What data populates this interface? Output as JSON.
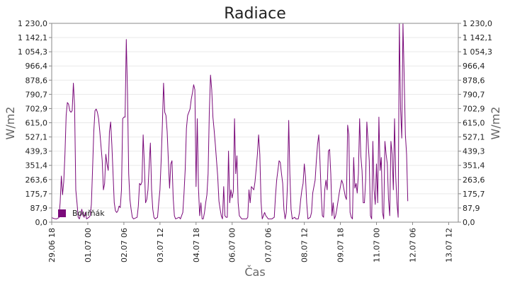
{
  "chart_data": {
    "type": "line",
    "title": "Radiace",
    "xlabel": "Čas",
    "ylabel": "W/m2",
    "y2label": "W/m2",
    "ylim": [
      0,
      1230.0
    ],
    "y_ticks": [
      "0,0",
      "87,9",
      "175,7",
      "263,6",
      "351,4",
      "439,3",
      "527,1",
      "615,0",
      "702,9",
      "790,7",
      "878,6",
      "966,4",
      "1 054,3",
      "1 142,1",
      "1 230,0"
    ],
    "x_ticks": [
      {
        "label": "29.06 18",
        "t": 0
      },
      {
        "label": "01.07 00",
        "t": 30
      },
      {
        "label": "02.07 06",
        "t": 60
      },
      {
        "label": "03.07 12",
        "t": 90
      },
      {
        "label": "04.07 18",
        "t": 120
      },
      {
        "label": "06.07 00",
        "t": 150
      },
      {
        "label": "07.07 06",
        "t": 180
      },
      {
        "label": "08.07 12",
        "t": 210
      },
      {
        "label": "09.07 18",
        "t": 240
      },
      {
        "label": "11.07 00",
        "t": 270
      },
      {
        "label": "12.07 06",
        "t": 300
      },
      {
        "label": "13.07 12",
        "t": 330
      }
    ],
    "xlim": [
      0,
      338
    ],
    "legend": "inside-bottom-left",
    "grid": true,
    "series": [
      {
        "name": "Bouřňák",
        "color": "#7a0a7a",
        "points": [
          [
            0,
            28
          ],
          [
            2,
            22
          ],
          [
            4,
            20
          ],
          [
            6,
            28
          ],
          [
            7,
            120
          ],
          [
            8,
            285
          ],
          [
            9,
            170
          ],
          [
            10,
            250
          ],
          [
            11,
            420
          ],
          [
            12,
            660
          ],
          [
            13,
            740
          ],
          [
            14,
            730
          ],
          [
            15,
            690
          ],
          [
            16,
            680
          ],
          [
            17,
            690
          ],
          [
            18,
            860
          ],
          [
            19,
            720
          ],
          [
            20,
            200
          ],
          [
            21,
            120
          ],
          [
            22,
            30
          ],
          [
            23,
            20
          ],
          [
            25,
            80
          ],
          [
            26,
            40
          ],
          [
            27,
            30
          ],
          [
            28,
            60
          ],
          [
            29,
            20
          ],
          [
            31,
            30
          ],
          [
            32,
            40
          ],
          [
            33,
            110
          ],
          [
            34,
            330
          ],
          [
            35,
            560
          ],
          [
            36,
            690
          ],
          [
            37,
            700
          ],
          [
            38,
            680
          ],
          [
            39,
            640
          ],
          [
            40,
            560
          ],
          [
            41,
            470
          ],
          [
            42,
            380
          ],
          [
            43,
            200
          ],
          [
            44,
            240
          ],
          [
            45,
            420
          ],
          [
            46,
            360
          ],
          [
            47,
            320
          ],
          [
            48,
            560
          ],
          [
            49,
            620
          ],
          [
            50,
            480
          ],
          [
            51,
            300
          ],
          [
            52,
            120
          ],
          [
            53,
            70
          ],
          [
            54,
            60
          ],
          [
            55,
            70
          ],
          [
            56,
            100
          ],
          [
            57,
            90
          ],
          [
            58,
            200
          ],
          [
            59,
            640
          ],
          [
            60,
            650
          ],
          [
            61,
            650
          ],
          [
            62,
            1130
          ],
          [
            63,
            800
          ],
          [
            64,
            300
          ],
          [
            65,
            140
          ],
          [
            66,
            80
          ],
          [
            67,
            30
          ],
          [
            68,
            20
          ],
          [
            71,
            30
          ],
          [
            72,
            100
          ],
          [
            73,
            240
          ],
          [
            74,
            230
          ],
          [
            75,
            250
          ],
          [
            76,
            540
          ],
          [
            77,
            360
          ],
          [
            78,
            120
          ],
          [
            79,
            140
          ],
          [
            80,
            200
          ],
          [
            81,
            350
          ],
          [
            82,
            490
          ],
          [
            83,
            200
          ],
          [
            84,
            80
          ],
          [
            85,
            30
          ],
          [
            86,
            20
          ],
          [
            88,
            30
          ],
          [
            89,
            120
          ],
          [
            90,
            200
          ],
          [
            91,
            380
          ],
          [
            92,
            600
          ],
          [
            93,
            860
          ],
          [
            94,
            680
          ],
          [
            95,
            660
          ],
          [
            96,
            560
          ],
          [
            97,
            380
          ],
          [
            98,
            210
          ],
          [
            99,
            360
          ],
          [
            100,
            380
          ],
          [
            101,
            150
          ],
          [
            102,
            40
          ],
          [
            103,
            20
          ],
          [
            106,
            30
          ],
          [
            107,
            20
          ],
          [
            109,
            60
          ],
          [
            110,
            180
          ],
          [
            111,
            330
          ],
          [
            112,
            580
          ],
          [
            113,
            660
          ],
          [
            114,
            680
          ],
          [
            115,
            700
          ],
          [
            116,
            760
          ],
          [
            117,
            800
          ],
          [
            118,
            850
          ],
          [
            119,
            820
          ],
          [
            120,
            220
          ],
          [
            121,
            640
          ],
          [
            122,
            210
          ],
          [
            123,
            40
          ],
          [
            124,
            120
          ],
          [
            125,
            20
          ],
          [
            126,
            20
          ],
          [
            127,
            60
          ],
          [
            128,
            120
          ],
          [
            129,
            170
          ],
          [
            130,
            300
          ],
          [
            131,
            680
          ],
          [
            132,
            910
          ],
          [
            133,
            820
          ],
          [
            134,
            650
          ],
          [
            135,
            570
          ],
          [
            136,
            480
          ],
          [
            137,
            380
          ],
          [
            138,
            280
          ],
          [
            139,
            130
          ],
          [
            140,
            80
          ],
          [
            141,
            40
          ],
          [
            142,
            20
          ],
          [
            143,
            220
          ],
          [
            144,
            40
          ],
          [
            145,
            30
          ],
          [
            146,
            30
          ],
          [
            147,
            440
          ],
          [
            148,
            120
          ],
          [
            149,
            200
          ],
          [
            150,
            150
          ],
          [
            151,
            190
          ],
          [
            152,
            640
          ],
          [
            153,
            300
          ],
          [
            154,
            410
          ],
          [
            155,
            120
          ],
          [
            156,
            40
          ],
          [
            158,
            20
          ],
          [
            160,
            20
          ],
          [
            162,
            20
          ],
          [
            163,
            30
          ],
          [
            164,
            200
          ],
          [
            165,
            120
          ],
          [
            166,
            220
          ],
          [
            167,
            210
          ],
          [
            168,
            200
          ],
          [
            169,
            250
          ],
          [
            170,
            330
          ],
          [
            171,
            420
          ],
          [
            172,
            540
          ],
          [
            173,
            420
          ],
          [
            174,
            130
          ],
          [
            175,
            20
          ],
          [
            176,
            40
          ],
          [
            177,
            60
          ],
          [
            178,
            40
          ],
          [
            179,
            30
          ],
          [
            180,
            20
          ],
          [
            183,
            20
          ],
          [
            185,
            30
          ],
          [
            186,
            160
          ],
          [
            187,
            260
          ],
          [
            188,
            320
          ],
          [
            189,
            380
          ],
          [
            190,
            370
          ],
          [
            191,
            300
          ],
          [
            192,
            240
          ],
          [
            193,
            80
          ],
          [
            194,
            20
          ],
          [
            195,
            60
          ],
          [
            196,
            240
          ],
          [
            197,
            630
          ],
          [
            198,
            300
          ],
          [
            199,
            80
          ],
          [
            200,
            20
          ],
          [
            202,
            30
          ],
          [
            203,
            20
          ],
          [
            205,
            20
          ],
          [
            206,
            60
          ],
          [
            207,
            140
          ],
          [
            208,
            200
          ],
          [
            209,
            240
          ],
          [
            210,
            360
          ],
          [
            211,
            280
          ],
          [
            212,
            120
          ],
          [
            213,
            20
          ],
          [
            215,
            30
          ],
          [
            216,
            60
          ],
          [
            217,
            180
          ],
          [
            218,
            220
          ],
          [
            219,
            260
          ],
          [
            220,
            380
          ],
          [
            221,
            480
          ],
          [
            222,
            540
          ],
          [
            223,
            380
          ],
          [
            224,
            180
          ],
          [
            225,
            40
          ],
          [
            226,
            30
          ],
          [
            227,
            200
          ],
          [
            228,
            260
          ],
          [
            229,
            200
          ],
          [
            230,
            440
          ],
          [
            231,
            450
          ],
          [
            232,
            300
          ],
          [
            233,
            40
          ],
          [
            234,
            120
          ],
          [
            235,
            20
          ],
          [
            236,
            40
          ],
          [
            237,
            80
          ],
          [
            238,
            130
          ],
          [
            239,
            180
          ],
          [
            240,
            220
          ],
          [
            241,
            260
          ],
          [
            242,
            240
          ],
          [
            243,
            200
          ],
          [
            244,
            160
          ],
          [
            245,
            140
          ],
          [
            246,
            600
          ],
          [
            247,
            540
          ],
          [
            248,
            60
          ],
          [
            249,
            30
          ],
          [
            250,
            20
          ],
          [
            251,
            400
          ],
          [
            252,
            210
          ],
          [
            253,
            240
          ],
          [
            254,
            180
          ],
          [
            255,
            300
          ],
          [
            256,
            640
          ],
          [
            257,
            410
          ],
          [
            258,
            320
          ],
          [
            259,
            120
          ],
          [
            260,
            120
          ],
          [
            261,
            260
          ],
          [
            262,
            620
          ],
          [
            263,
            500
          ],
          [
            264,
            380
          ],
          [
            265,
            40
          ],
          [
            266,
            20
          ],
          [
            267,
            500
          ],
          [
            268,
            200
          ],
          [
            269,
            110
          ],
          [
            270,
            360
          ],
          [
            271,
            120
          ],
          [
            272,
            650
          ],
          [
            273,
            320
          ],
          [
            274,
            400
          ],
          [
            275,
            60
          ],
          [
            276,
            20
          ],
          [
            277,
            500
          ],
          [
            278,
            420
          ],
          [
            279,
            360
          ],
          [
            280,
            140
          ],
          [
            281,
            40
          ],
          [
            282,
            500
          ],
          [
            283,
            420
          ],
          [
            284,
            200
          ],
          [
            285,
            640
          ],
          [
            286,
            280
          ],
          [
            287,
            120
          ],
          [
            288,
            30
          ],
          [
            289,
            1230
          ],
          [
            290,
            700
          ],
          [
            291,
            520
          ],
          [
            292,
            1230
          ],
          [
            293,
            900
          ],
          [
            294,
            540
          ],
          [
            295,
            420
          ],
          [
            296,
            130
          ]
        ]
      }
    ]
  }
}
